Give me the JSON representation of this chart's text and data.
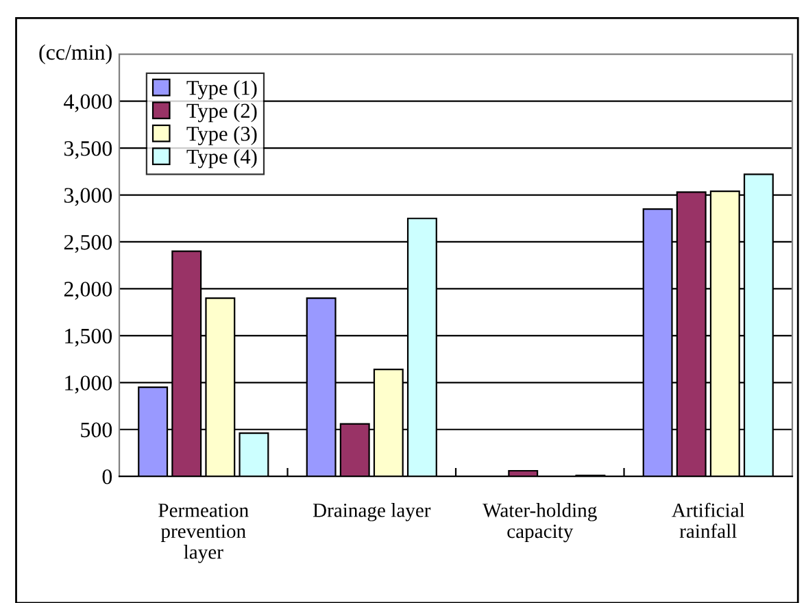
{
  "chart_data": {
    "type": "bar",
    "ylabel": "(cc/min)",
    "categories": [
      "Permeation\nprevention\nlayer",
      "Drainage layer",
      "Water-holding\ncapacity",
      "Artificial\nrainfall"
    ],
    "series": [
      {
        "name": "Type (1)",
        "color": "#9999ff",
        "values": [
          950,
          1900,
          null,
          2850
        ]
      },
      {
        "name": "Type (2)",
        "color": "#993366",
        "values": [
          2400,
          560,
          60,
          3030
        ]
      },
      {
        "name": "Type (3)",
        "color": "#ffffcc",
        "values": [
          1900,
          1140,
          null,
          3040
        ]
      },
      {
        "name": "Type (4)",
        "color": "#ccffff",
        "values": [
          460,
          2750,
          10,
          3220
        ]
      }
    ],
    "ylim": [
      0,
      4500
    ],
    "yticks": [
      {
        "value": 0,
        "label": "0"
      },
      {
        "value": 500,
        "label": "500"
      },
      {
        "value": 1000,
        "label": "1,000"
      },
      {
        "value": 1500,
        "label": "1,500"
      },
      {
        "value": 2000,
        "label": "2,000"
      },
      {
        "value": 2500,
        "label": "2,500"
      },
      {
        "value": 3000,
        "label": "3,000"
      },
      {
        "value": 3500,
        "label": "3,500"
      },
      {
        "value": 4000,
        "label": "4,000"
      }
    ],
    "grid": "y",
    "legend": "top left"
  }
}
